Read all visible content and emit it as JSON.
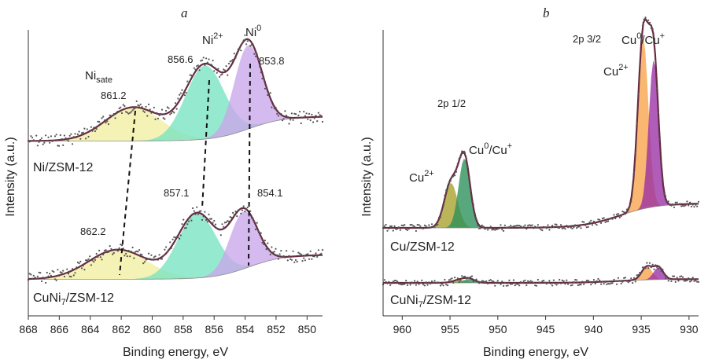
{
  "chart_data": [
    {
      "panel": "a",
      "type": "line",
      "title": "a",
      "xlabel": "Binding energy, eV",
      "ylabel": "Intensity (a.u.)",
      "xlim": [
        868,
        849
      ],
      "x_reversed": true,
      "ticks": [
        "868",
        "866",
        "864",
        "862",
        "860",
        "858",
        "856",
        "854",
        "852",
        "850"
      ],
      "species_labels": {
        "sate": "Ni",
        "sate_sub": "sate",
        "ni2": "Ni",
        "ni2_sup": "2+",
        "ni0": "Ni",
        "ni0_sup": "0"
      },
      "spectra": [
        {
          "name": "Ni/ZSM-12",
          "offset": 1.5,
          "peak_labels": [
            "861.2",
            "856.6",
            "853.8"
          ],
          "components": [
            {
              "name": "Ni sate",
              "center": 861.2,
              "amp": 0.33,
              "sigma": 1.8,
              "color": "#f2eea0"
            },
            {
              "name": "Ni2+",
              "center": 856.6,
              "amp": 0.72,
              "sigma": 1.25,
              "color": "#77e3c0"
            },
            {
              "name": "Ni0",
              "center": 853.8,
              "amp": 0.82,
              "sigma": 0.9,
              "color": "#c9a7ec"
            }
          ]
        },
        {
          "name": "CuNi7/ZSM-12",
          "offset": 0.0,
          "peak_labels": [
            "862.2",
            "857.1",
            "854.1"
          ],
          "components": [
            {
              "name": "Ni sate",
              "center": 862.2,
              "amp": 0.29,
              "sigma": 1.9,
              "color": "#f2eea0"
            },
            {
              "name": "Ni2+",
              "center": 857.1,
              "amp": 0.63,
              "sigma": 1.25,
              "color": "#77e3c0"
            },
            {
              "name": "Ni0",
              "center": 854.1,
              "amp": 0.56,
              "sigma": 0.9,
              "color": "#c9a7ec"
            }
          ]
        }
      ]
    },
    {
      "panel": "b",
      "type": "line",
      "title": "b",
      "xlabel": "Binding energy, eV",
      "ylabel": "Intensity (a.u.)",
      "xlim": [
        962,
        929
      ],
      "x_reversed": true,
      "ticks": [
        "960",
        "955",
        "950",
        "945",
        "940",
        "935",
        "930"
      ],
      "annotations": {
        "two_p_half": "2p 1/2",
        "two_p_threehalf": "2p 3/2",
        "cu2_left": {
          "base": "Cu",
          "sup": "2+"
        },
        "cu0_left": {
          "base": "Cu",
          "sup1": "0",
          "mid": "/Cu",
          "sup2": "+"
        },
        "cu2_right": {
          "base": "Cu",
          "sup": "2+"
        },
        "cu0_right": {
          "base": "Cu",
          "sup1": "0",
          "mid": "/Cu",
          "sup2": "+"
        }
      },
      "spectra": [
        {
          "name": "Cu/ZSM-12",
          "offset": 0.5,
          "components": [
            {
              "name": "Cu2+ 2p1/2",
              "center": 954.9,
              "amp": 0.22,
              "sigma": 0.7,
              "color": "#a6a02a"
            },
            {
              "name": "Cu0/Cu+ 2p1/2",
              "center": 953.5,
              "amp": 0.34,
              "sigma": 0.6,
              "color": "#2a8f58"
            },
            {
              "name": "Cu2+ 2p3/2",
              "center": 934.8,
              "amp": 0.84,
              "sigma": 0.55,
              "color": "#f8a34a"
            },
            {
              "name": "Cu0/Cu+ 2p3/2",
              "center": 933.7,
              "amp": 0.72,
              "sigma": 0.5,
              "color": "#9a2ea5"
            }
          ]
        },
        {
          "name": "CuNi7/ZSM-12",
          "offset": 0.0,
          "components": [
            {
              "name": "Cu2+ 2p1/2",
              "center": 954.0,
              "amp": 0.015,
              "sigma": 0.7,
              "color": "#a6a02a"
            },
            {
              "name": "Cu0/Cu+ 2p1/2",
              "center": 953.0,
              "amp": 0.02,
              "sigma": 0.6,
              "color": "#2a8f58"
            },
            {
              "name": "Cu2+ 2p3/2",
              "center": 934.4,
              "amp": 0.07,
              "sigma": 0.55,
              "color": "#f8a34a"
            },
            {
              "name": "Cu0/Cu+ 2p3/2",
              "center": 933.2,
              "amp": 0.065,
              "sigma": 0.5,
              "color": "#9a2ea5"
            }
          ]
        }
      ]
    }
  ]
}
